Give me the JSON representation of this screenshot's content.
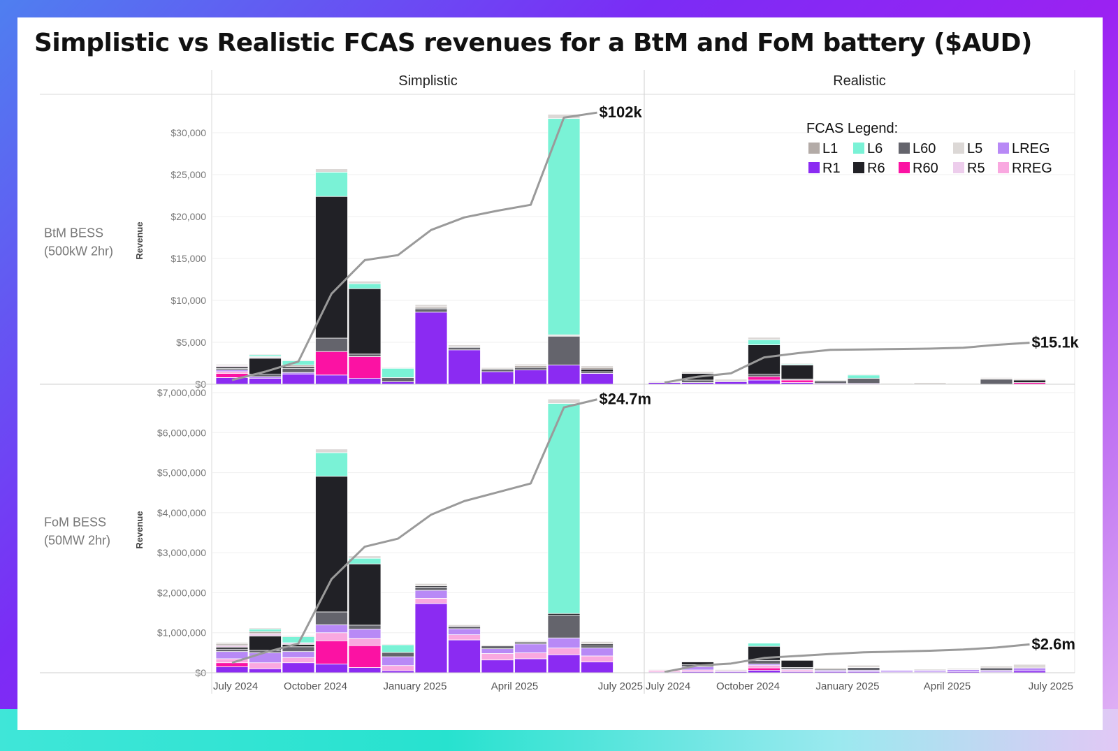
{
  "title": "Simplistic vs Realistic FCAS revenues for a BtM and FoM battery ($AUD)",
  "column_headers": [
    "Simplistic",
    "Realistic"
  ],
  "row_labels": [
    {
      "line1": "BtM BESS",
      "line2": "(500kW 2hr)"
    },
    {
      "line1": "FoM BESS",
      "line2": "(50MW 2hr)"
    }
  ],
  "y_axis_title": "Revenue",
  "legend": {
    "title": "FCAS Legend:",
    "items": [
      {
        "key": "L1",
        "label": "L1",
        "color": "#b3aba7"
      },
      {
        "key": "L6",
        "label": "L6",
        "color": "#7af2d6"
      },
      {
        "key": "L60",
        "label": "L60",
        "color": "#64646c"
      },
      {
        "key": "L5",
        "label": "L5",
        "color": "#dcd8d6"
      },
      {
        "key": "LREG",
        "label": "LREG",
        "color": "#b889f6"
      },
      {
        "key": "R1",
        "label": "R1",
        "color": "#8b2bf2"
      },
      {
        "key": "R6",
        "label": "R6",
        "color": "#212126"
      },
      {
        "key": "R60",
        "label": "R60",
        "color": "#fb12a3"
      },
      {
        "key": "R5",
        "label": "R5",
        "color": "#edcdec"
      },
      {
        "key": "RREG",
        "label": "RREG",
        "color": "#f9a8e0"
      }
    ]
  },
  "line_color": "#9a9a9a",
  "chart_data": {
    "type": "bar",
    "categories": [
      "Jul 2024",
      "Aug 2024",
      "Sep 2024",
      "Oct 2024",
      "Nov 2024",
      "Dec 2024",
      "Jan 2025",
      "Feb 2025",
      "Mar 2025",
      "Apr 2025",
      "May 2025",
      "Jun 2025",
      "Jul 2025"
    ],
    "x_tick_labels": [
      "July 2024",
      "October 2024",
      "January 2025",
      "April 2025",
      "July 2025"
    ],
    "x_tick_category_index": [
      0,
      3,
      6,
      9,
      12
    ],
    "stack_order": [
      "R1",
      "R60",
      "RREG",
      "LREG",
      "L60",
      "R6",
      "R5",
      "L1",
      "L6",
      "L5"
    ],
    "panels": [
      {
        "row": "BtM BESS (500kW 2hr)",
        "column": "Simplistic",
        "ylim": [
          0,
          33500
        ],
        "y_ticks": [
          0,
          5000,
          10000,
          15000,
          20000,
          25000,
          30000
        ],
        "y_tick_labels": [
          "$0",
          "$5,000",
          "$10,000",
          "$15,000",
          "$20,000",
          "$25,000",
          "$30,000"
        ],
        "bars": [
          {
            "R1": 800,
            "R60": 500,
            "RREG": 200,
            "LREG": 200,
            "L60": 200,
            "R6": 200,
            "R5": 100,
            "L1": 100,
            "L6": 0,
            "L5": 100
          },
          {
            "R1": 700,
            "R60": 0,
            "RREG": 0,
            "LREG": 200,
            "L60": 300,
            "R6": 1900,
            "R5": 100,
            "L1": 100,
            "L6": 200,
            "L5": 100
          },
          {
            "R1": 1200,
            "R60": 0,
            "RREG": 0,
            "LREG": 200,
            "L60": 500,
            "R6": 200,
            "R5": 0,
            "L1": 200,
            "L6": 500,
            "L5": 100
          },
          {
            "R1": 1100,
            "R60": 2800,
            "RREG": 0,
            "LREG": 0,
            "L60": 1600,
            "R6": 16900,
            "R5": 0,
            "L1": 0,
            "L6": 2900,
            "L5": 400
          },
          {
            "R1": 700,
            "R60": 2600,
            "RREG": 0,
            "LREG": 0,
            "L60": 300,
            "R6": 7800,
            "R5": 0,
            "L1": 0,
            "L6": 600,
            "L5": 300
          },
          {
            "R1": 300,
            "R60": 0,
            "RREG": 0,
            "LREG": 0,
            "L60": 500,
            "R6": 0,
            "R5": 0,
            "L1": 0,
            "L6": 1100,
            "L5": 100
          },
          {
            "R1": 8600,
            "R60": 0,
            "RREG": 0,
            "LREG": 0,
            "L60": 400,
            "R6": 100,
            "R5": 0,
            "L1": 200,
            "L6": 0,
            "L5": 200
          },
          {
            "R1": 4100,
            "R60": 0,
            "RREG": 0,
            "LREG": 0,
            "L60": 300,
            "R6": 0,
            "R5": 0,
            "L1": 100,
            "L6": 0,
            "L5": 200
          },
          {
            "R1": 1500,
            "R60": 0,
            "RREG": 0,
            "LREG": 0,
            "L60": 300,
            "R6": 0,
            "R5": 0,
            "L1": 100,
            "L6": 0,
            "L5": 100
          },
          {
            "R1": 1700,
            "R60": 0,
            "RREG": 0,
            "LREG": 0,
            "L60": 300,
            "R6": 0,
            "R5": 0,
            "L1": 200,
            "L6": 0,
            "L5": 200
          },
          {
            "R1": 2300,
            "R60": 0,
            "RREG": 0,
            "LREG": 0,
            "L60": 3400,
            "R6": 100,
            "R5": 0,
            "L1": 100,
            "L6": 25800,
            "L5": 500
          },
          {
            "R1": 1300,
            "R60": 0,
            "RREG": 0,
            "LREG": 0,
            "L60": 200,
            "R6": 300,
            "R5": 0,
            "L1": 200,
            "L6": 0,
            "L5": 200
          }
        ],
        "cumulative_line": [
          500,
          1500,
          2700,
          10800,
          14800,
          15400,
          18400,
          19900,
          20700,
          21400,
          31800,
          32400
        ],
        "end_label": "$102k"
      },
      {
        "row": "BtM BESS (500kW 2hr)",
        "column": "Realistic",
        "ylim": [
          0,
          33500
        ],
        "bars": [
          {
            "R1": 200,
            "R60": 0,
            "RREG": 0,
            "LREG": 0,
            "L60": 0,
            "R6": 0,
            "R5": 0,
            "L1": 100,
            "L6": 0,
            "L5": 100
          },
          {
            "R1": 200,
            "R60": 0,
            "RREG": 0,
            "LREG": 0,
            "L60": 300,
            "R6": 800,
            "R5": 0,
            "L1": 0,
            "L6": 0,
            "L5": 200
          },
          {
            "R1": 300,
            "R60": 0,
            "RREG": 0,
            "LREG": 0,
            "L60": 100,
            "R6": 0,
            "R5": 0,
            "L1": 0,
            "L6": 0,
            "L5": 200
          },
          {
            "R1": 500,
            "R60": 400,
            "RREG": 0,
            "LREG": 0,
            "L60": 300,
            "R6": 3500,
            "R5": 0,
            "L1": 0,
            "L6": 600,
            "L5": 300
          },
          {
            "R1": 200,
            "R60": 300,
            "RREG": 0,
            "LREG": 0,
            "L60": 100,
            "R6": 1700,
            "R5": 0,
            "L1": 0,
            "L6": 100,
            "L5": 100
          },
          {
            "R1": 100,
            "R60": 0,
            "RREG": 0,
            "LREG": 0,
            "L60": 300,
            "R6": 0,
            "R5": 0,
            "L1": 0,
            "L6": 0,
            "L5": 100
          },
          {
            "R1": 100,
            "R60": 0,
            "RREG": 0,
            "LREG": 0,
            "L60": 600,
            "R6": 0,
            "R5": 0,
            "L1": 0,
            "L6": 400,
            "L5": 100
          },
          {
            "R1": 0,
            "R60": 0,
            "RREG": 0,
            "LREG": 0,
            "L60": 0,
            "R6": 0,
            "R5": 0,
            "L1": 0,
            "L6": 0,
            "L5": 100
          },
          {
            "R1": 0,
            "R60": 0,
            "RREG": 0,
            "LREG": 0,
            "L60": 0,
            "R6": 0,
            "R5": 0,
            "L1": 0,
            "L6": 0,
            "L5": 200
          },
          {
            "R1": 0,
            "R60": 0,
            "RREG": 0,
            "LREG": 0,
            "L60": 0,
            "R6": 0,
            "R5": 0,
            "L1": 0,
            "L6": 0,
            "L5": 100
          },
          {
            "R1": 0,
            "R60": 0,
            "RREG": 0,
            "LREG": 0,
            "L60": 600,
            "R6": 0,
            "R5": 0,
            "L1": 100,
            "L6": 0,
            "L5": 100
          },
          {
            "R1": 0,
            "R60": 200,
            "RREG": 0,
            "LREG": 0,
            "L60": 0,
            "R6": 300,
            "R5": 0,
            "L1": 100,
            "L6": 0,
            "L5": 100
          }
        ],
        "cumulative_line": [
          200,
          900,
          1300,
          3200,
          3700,
          4100,
          4150,
          4200,
          4250,
          4350,
          4700,
          4950
        ],
        "end_label": "$15.1k"
      },
      {
        "row": "FoM BESS (50MW 2hr)",
        "column": "Simplistic",
        "ylim": [
          0,
          7000000
        ],
        "y_ticks": [
          0,
          1000000,
          2000000,
          3000000,
          4000000,
          5000000,
          6000000,
          7000000
        ],
        "y_tick_labels": [
          "$0",
          "$1,000,000",
          "$2,000,000",
          "$3,000,000",
          "$4,000,000",
          "$5,000,000",
          "$6,000,000",
          "$7,000,000"
        ],
        "bars": [
          {
            "R1": 150000,
            "R60": 100000,
            "RREG": 100000,
            "LREG": 180000,
            "L60": 60000,
            "R6": 50000,
            "R5": 40000,
            "L1": 40000,
            "L6": 0,
            "L5": 40000
          },
          {
            "R1": 100000,
            "R60": 0,
            "RREG": 150000,
            "LREG": 250000,
            "L60": 60000,
            "R6": 360000,
            "R5": 60000,
            "L1": 50000,
            "L6": 60000,
            "L5": 30000
          },
          {
            "R1": 250000,
            "R60": 0,
            "RREG": 130000,
            "LREG": 150000,
            "L60": 120000,
            "R6": 60000,
            "R5": 40000,
            "L1": 0,
            "L6": 150000,
            "L5": 30000
          },
          {
            "R1": 220000,
            "R60": 580000,
            "RREG": 200000,
            "LREG": 200000,
            "L60": 320000,
            "R6": 3390000,
            "R5": 0,
            "L1": 0,
            "L6": 590000,
            "L5": 90000
          },
          {
            "R1": 130000,
            "R60": 550000,
            "RREG": 180000,
            "LREG": 230000,
            "L60": 100000,
            "R6": 1530000,
            "R5": 0,
            "L1": 0,
            "L6": 140000,
            "L5": 60000
          },
          {
            "R1": 50000,
            "R60": 0,
            "RREG": 130000,
            "LREG": 220000,
            "L60": 110000,
            "R6": 0,
            "R5": 0,
            "L1": 0,
            "L6": 190000,
            "L5": 20000
          },
          {
            "R1": 1730000,
            "R60": 0,
            "RREG": 130000,
            "LREG": 200000,
            "L60": 80000,
            "R6": 30000,
            "R5": 0,
            "L1": 0,
            "L6": 0,
            "L5": 60000
          },
          {
            "R1": 820000,
            "R60": 0,
            "RREG": 130000,
            "LREG": 150000,
            "L60": 60000,
            "R6": 0,
            "R5": 0,
            "L1": 0,
            "L6": 0,
            "L5": 40000
          },
          {
            "R1": 320000,
            "R60": 0,
            "RREG": 160000,
            "LREG": 120000,
            "L60": 70000,
            "R6": 0,
            "R5": 0,
            "L1": 0,
            "L6": 0,
            "L5": 30000
          },
          {
            "R1": 350000,
            "R60": 0,
            "RREG": 150000,
            "LREG": 220000,
            "L60": 50000,
            "R6": 0,
            "R5": 0,
            "L1": 0,
            "L6": 0,
            "L5": 30000
          },
          {
            "R1": 450000,
            "R60": 0,
            "RREG": 170000,
            "LREG": 250000,
            "L60": 570000,
            "R6": 40000,
            "R5": 0,
            "L1": 0,
            "L6": 5250000,
            "L5": 110000
          },
          {
            "R1": 270000,
            "R60": 0,
            "RREG": 150000,
            "LREG": 200000,
            "L60": 50000,
            "R6": 50000,
            "R5": 0,
            "L1": 0,
            "L6": 0,
            "L5": 60000
          }
        ],
        "cumulative_line": [
          250000,
          510000,
          730000,
          2340000,
          3150000,
          3350000,
          3950000,
          4290000,
          4510000,
          4730000,
          6630000,
          6830000
        ],
        "end_label": "$24.7m"
      },
      {
        "row": "FoM BESS (50MW 2hr)",
        "column": "Realistic",
        "ylim": [
          0,
          7000000
        ],
        "bars": [
          {
            "R1": 20000,
            "R60": 0,
            "RREG": 40000,
            "LREG": 0,
            "L60": 0,
            "R6": 0,
            "R5": 0,
            "L1": 0,
            "L6": 0,
            "L5": 20000
          },
          {
            "R1": 30000,
            "R60": 0,
            "RREG": 40000,
            "LREG": 80000,
            "L60": 50000,
            "R6": 70000,
            "R5": 0,
            "L1": 0,
            "L6": 0,
            "L5": 0
          },
          {
            "R1": 30000,
            "R60": 0,
            "RREG": 20000,
            "LREG": 0,
            "L60": 0,
            "R6": 0,
            "R5": 0,
            "L1": 0,
            "L6": 0,
            "L5": 30000
          },
          {
            "R1": 60000,
            "R60": 60000,
            "RREG": 60000,
            "LREG": 40000,
            "L60": 90000,
            "R6": 350000,
            "R5": 0,
            "L1": 0,
            "L6": 80000,
            "L5": 0
          },
          {
            "R1": 30000,
            "R60": 0,
            "RREG": 40000,
            "LREG": 20000,
            "L60": 40000,
            "R6": 180000,
            "R5": 0,
            "L1": 0,
            "L6": 0,
            "L5": 0
          },
          {
            "R1": 30000,
            "R60": 0,
            "RREG": 0,
            "LREG": 30000,
            "L60": 30000,
            "R6": 0,
            "R5": 0,
            "L1": 0,
            "L6": 0,
            "L5": 40000
          },
          {
            "R1": 30000,
            "R60": 0,
            "RREG": 0,
            "LREG": 30000,
            "L60": 70000,
            "R6": 0,
            "R5": 0,
            "L1": 0,
            "L6": 0,
            "L5": 60000
          },
          {
            "R1": 20000,
            "R60": 0,
            "RREG": 0,
            "LREG": 40000,
            "L60": 0,
            "R6": 0,
            "R5": 0,
            "L1": 0,
            "L6": 0,
            "L5": 0
          },
          {
            "R1": 20000,
            "R60": 0,
            "RREG": 0,
            "LREG": 40000,
            "L60": 0,
            "R6": 0,
            "R5": 0,
            "L1": 0,
            "L6": 0,
            "L5": 30000
          },
          {
            "R1": 30000,
            "R60": 0,
            "RREG": 0,
            "LREG": 50000,
            "L60": 0,
            "R6": 0,
            "R5": 0,
            "L1": 0,
            "L6": 0,
            "L5": 30000
          },
          {
            "R1": 20000,
            "R60": 0,
            "RREG": 0,
            "LREG": 40000,
            "L60": 60000,
            "R6": 0,
            "R5": 0,
            "L1": 0,
            "L6": 0,
            "L5": 50000
          },
          {
            "R1": 50000,
            "R60": 0,
            "RREG": 0,
            "LREG": 70000,
            "L60": 0,
            "R6": 0,
            "R5": 0,
            "L1": 0,
            "L6": 0,
            "L5": 90000
          }
        ],
        "cumulative_line": [
          20000,
          180000,
          230000,
          370000,
          420000,
          470000,
          510000,
          530000,
          550000,
          580000,
          630000,
          710000
        ],
        "end_label": "$2.6m"
      }
    ]
  }
}
